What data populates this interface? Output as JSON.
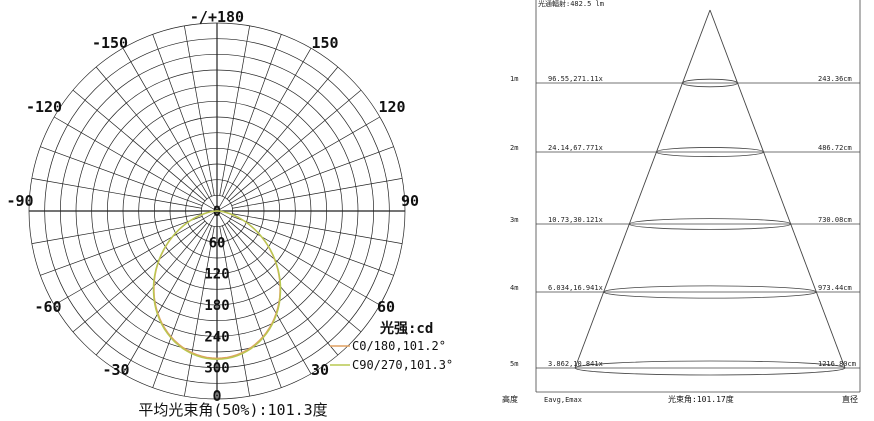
{
  "chart_data": [
    {
      "type": "polar",
      "angle_labels": [
        {
          "angle": 180,
          "text": "-/+180"
        },
        {
          "angle": -150,
          "text": "-150"
        },
        {
          "angle": 150,
          "text": "150"
        },
        {
          "angle": -120,
          "text": "-120"
        },
        {
          "angle": 120,
          "text": "120"
        },
        {
          "angle": -90,
          "text": "-90"
        },
        {
          "angle": 90,
          "text": "90"
        },
        {
          "angle": -60,
          "text": "-60"
        },
        {
          "angle": 60,
          "text": "60"
        },
        {
          "angle": -30,
          "text": "-30"
        },
        {
          "angle": 30,
          "text": "30"
        },
        {
          "angle": 0,
          "text": "0"
        }
      ],
      "radial_ticks": [
        0,
        60,
        120,
        180,
        240,
        300
      ],
      "rmax": 360,
      "radial_unit_label": "光强:cd",
      "series": [
        {
          "name": "C0/180,101.2°",
          "color": "#e0a060",
          "beam_angle": 101.2,
          "peak": 282
        },
        {
          "name": "C90/270,101.3°",
          "color": "#b8c850",
          "beam_angle": 101.3,
          "peak": 284
        }
      ],
      "caption": "平均光束角(50%):101.3度"
    },
    {
      "type": "table",
      "title": "光通輻射:482.5 lm",
      "columns": {
        "left": "高度",
        "mid_left": "Eavg,Emax",
        "center": "光束角:101.17度",
        "right": "直径"
      },
      "rows": [
        {
          "height": "1m",
          "illum": "96.55,271.11x",
          "diameter": "243.36cm"
        },
        {
          "height": "2m",
          "illum": "24.14,67.771x",
          "diameter": "486.72cm"
        },
        {
          "height": "3m",
          "illum": "10.73,30.121x",
          "diameter": "730.08cm"
        },
        {
          "height": "4m",
          "illum": "6.034,16.941x",
          "diameter": "973.44cm"
        },
        {
          "height": "5m",
          "illum": "3.862,10.841x",
          "diameter": "1216.80cm"
        }
      ]
    }
  ]
}
